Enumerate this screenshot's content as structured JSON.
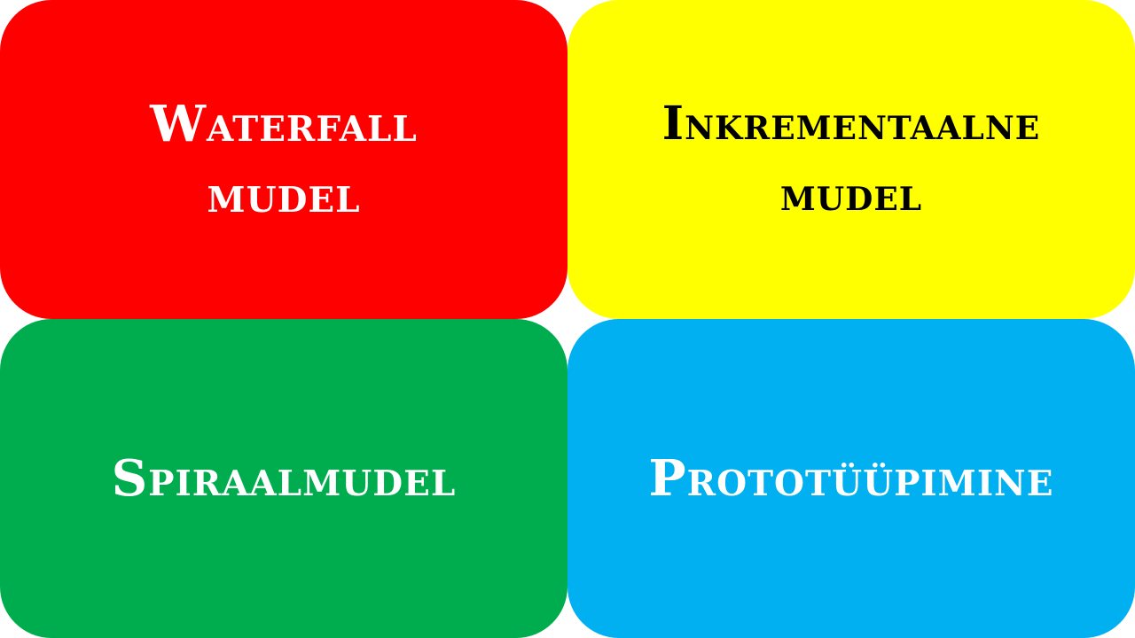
{
  "tiles": [
    {
      "id": "waterfall",
      "label": "Waterfall\nmudel",
      "bg": "#ff0000",
      "fg": "#ffffff"
    },
    {
      "id": "inkrementaalne",
      "label": "Inkrementaalne\nmudel",
      "bg": "#ffff00",
      "fg": "#000000"
    },
    {
      "id": "spiraal",
      "label": "Spiraalmudel",
      "bg": "#00ad4e",
      "fg": "#ffffff"
    },
    {
      "id": "prototuupimine",
      "label": "Prototüüpimine",
      "bg": "#00b0f0",
      "fg": "#ffffff"
    }
  ]
}
